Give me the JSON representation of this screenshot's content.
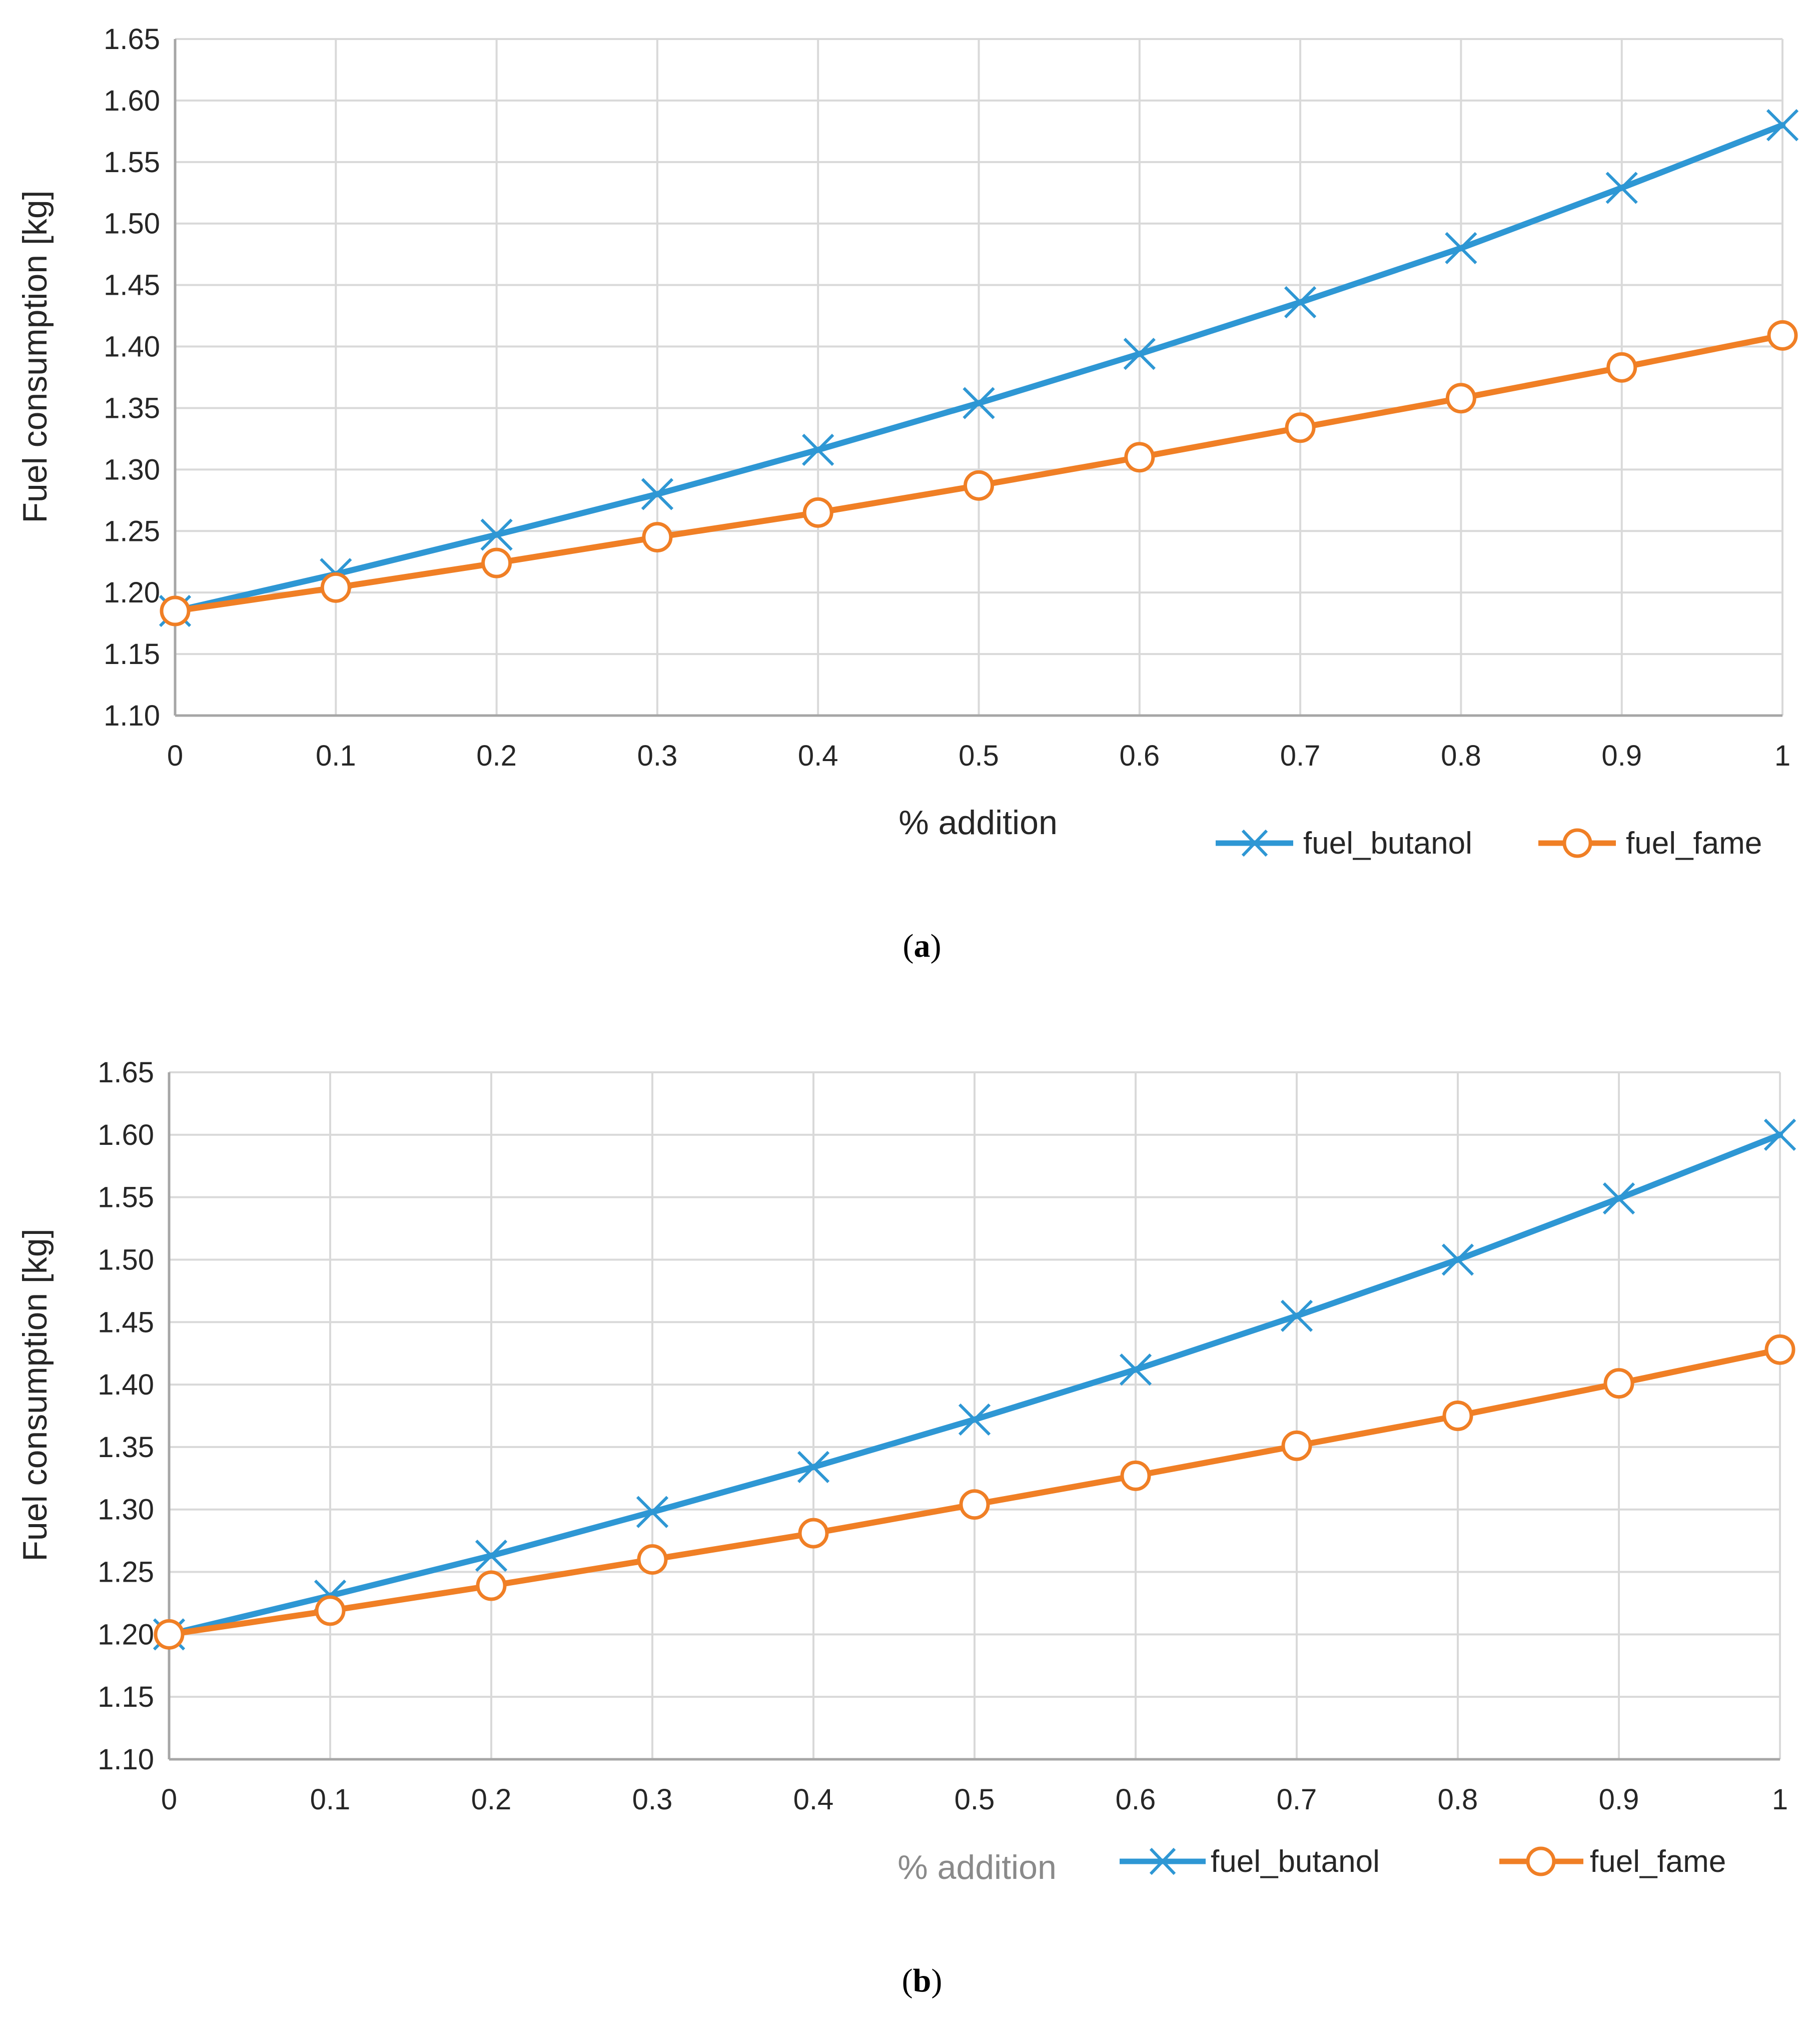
{
  "colors": {
    "butanol": "#2E97D4",
    "fame": "#F07F25",
    "grid": "#D9D9D9",
    "axis": "#A6A6A6"
  },
  "chart_data": [
    {
      "type": "line",
      "panel": "a",
      "caption": {
        "open": "(",
        "letter": "a",
        "close": ")"
      },
      "title": "",
      "xlabel": "% addition",
      "ylabel": "Fuel consumption [kg]",
      "x": [
        0,
        0.1,
        0.2,
        0.3,
        0.4,
        0.5,
        0.6,
        0.7,
        0.8,
        0.9,
        1
      ],
      "x_tick_labels": [
        "0",
        "0.1",
        "0.2",
        "0.3",
        "0.4",
        "0.5",
        "0.6",
        "0.7",
        "0.8",
        "0.9",
        "1"
      ],
      "y_tick_labels": [
        "1.10",
        "1.15",
        "1.20",
        "1.25",
        "1.30",
        "1.35",
        "1.40",
        "1.45",
        "1.50",
        "1.55",
        "1.60",
        "1.65"
      ],
      "ylim": [
        1.1,
        1.65
      ],
      "xlim": [
        0,
        1
      ],
      "grid": true,
      "legend_position": "bottom-right",
      "series": [
        {
          "name": "fuel_butanol",
          "marker": "x",
          "values": [
            1.185,
            1.215,
            1.247,
            1.28,
            1.316,
            1.354,
            1.394,
            1.436,
            1.48,
            1.529,
            1.58
          ]
        },
        {
          "name": "fuel_fame",
          "marker": "circle",
          "values": [
            1.185,
            1.204,
            1.224,
            1.245,
            1.265,
            1.287,
            1.31,
            1.334,
            1.358,
            1.383,
            1.409
          ]
        }
      ]
    },
    {
      "type": "line",
      "panel": "b",
      "caption": {
        "open": "(",
        "letter": "b",
        "close": ")"
      },
      "title": "",
      "xlabel": "% addition",
      "ylabel": "Fuel consumption [kg]",
      "x": [
        0,
        0.1,
        0.2,
        0.3,
        0.4,
        0.5,
        0.6,
        0.7,
        0.8,
        0.9,
        1
      ],
      "x_tick_labels": [
        "0",
        "0.1",
        "0.2",
        "0.3",
        "0.4",
        "0.5",
        "0.6",
        "0.7",
        "0.8",
        "0.9",
        "1"
      ],
      "y_tick_labels": [
        "1.10",
        "1.15",
        "1.20",
        "1.25",
        "1.30",
        "1.35",
        "1.40",
        "1.45",
        "1.50",
        "1.55",
        "1.60",
        "1.65"
      ],
      "ylim": [
        1.1,
        1.65
      ],
      "xlim": [
        0,
        1
      ],
      "grid": true,
      "legend_position": "bottom-center",
      "series": [
        {
          "name": "fuel_butanol",
          "marker": "x",
          "values": [
            1.2,
            1.231,
            1.263,
            1.298,
            1.334,
            1.372,
            1.412,
            1.455,
            1.5,
            1.549,
            1.6
          ]
        },
        {
          "name": "fuel_fame",
          "marker": "circle",
          "values": [
            1.2,
            1.219,
            1.239,
            1.26,
            1.281,
            1.304,
            1.327,
            1.351,
            1.375,
            1.401,
            1.428
          ]
        }
      ]
    }
  ]
}
